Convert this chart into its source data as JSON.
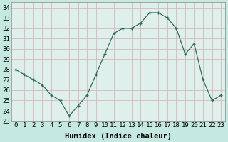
{
  "x": [
    0,
    1,
    2,
    3,
    4,
    5,
    6,
    7,
    8,
    9,
    10,
    11,
    12,
    13,
    14,
    15,
    16,
    17,
    18,
    19,
    20,
    21,
    22,
    23
  ],
  "y": [
    28,
    27.5,
    27,
    26.5,
    25.5,
    25,
    23.5,
    24.5,
    25.5,
    27.5,
    29.5,
    31.5,
    32,
    32,
    32.5,
    33.5,
    33.5,
    33,
    32,
    29.5,
    30.5,
    27,
    25,
    25.5
  ],
  "line_color": "#2e6b5e",
  "marker": "+",
  "bg_color": "#c5e8e0",
  "grid_color": "#d4b8b8",
  "plot_bg": "#dff0ec",
  "xlabel": "Humidex (Indice chaleur)",
  "ylabel_ticks": [
    23,
    24,
    25,
    26,
    27,
    28,
    29,
    30,
    31,
    32,
    33,
    34
  ],
  "xtick_labels": [
    "0",
    "1",
    "2",
    "3",
    "4",
    "5",
    "6",
    "7",
    "8",
    "9",
    "10",
    "11",
    "12",
    "13",
    "14",
    "15",
    "16",
    "17",
    "18",
    "19",
    "20",
    "21",
    "22",
    "23"
  ],
  "ylim": [
    23,
    34.5
  ],
  "xlim": [
    -0.5,
    23.5
  ],
  "label_fontsize": 7.5,
  "tick_fontsize": 6.5
}
